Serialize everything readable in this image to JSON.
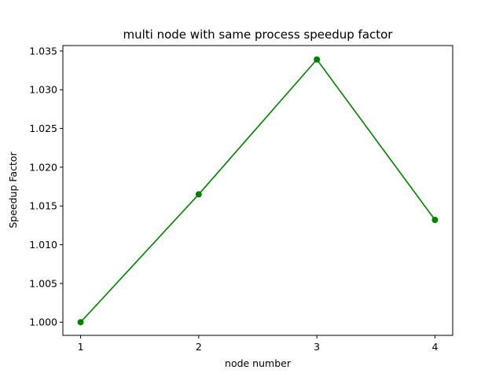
{
  "chart_data": {
    "type": "line",
    "title": "multi node with same process speedup factor",
    "xlabel": "node number",
    "ylabel": "Speedup Factor",
    "x": [
      1,
      2,
      3,
      4
    ],
    "x_tick_labels": [
      "1",
      "2",
      "3",
      "4"
    ],
    "y_ticks": [
      1.0,
      1.005,
      1.01,
      1.015,
      1.02,
      1.025,
      1.03,
      1.035
    ],
    "y_tick_labels": [
      "1.000",
      "1.005",
      "1.010",
      "1.015",
      "1.020",
      "1.025",
      "1.030",
      "1.035"
    ],
    "xlim": [
      0.85,
      4.15
    ],
    "ylim": [
      0.9983,
      1.0357
    ],
    "grid": false,
    "series": [
      {
        "values": [
          1.0,
          1.0165,
          1.0339,
          1.0132
        ],
        "color": "#008000",
        "marker": "circle"
      }
    ]
  }
}
